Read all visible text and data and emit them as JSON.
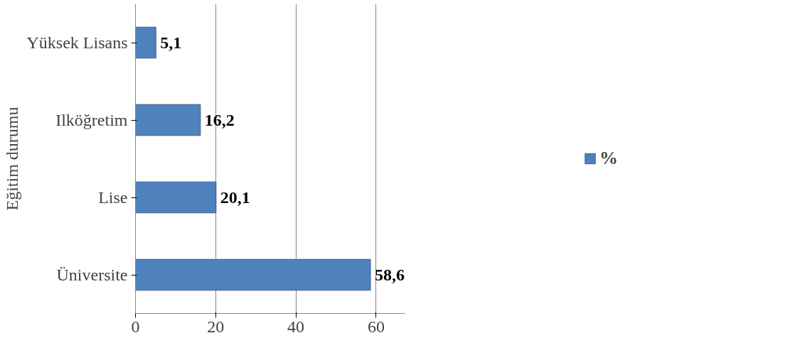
{
  "chart_data": {
    "type": "bar",
    "orientation": "horizontal",
    "ylabel": "Eğitim durumu",
    "categories": [
      "Yüksek Lisans",
      "Ilköğretim",
      "Lise",
      "Üniversite"
    ],
    "series": [
      {
        "name": "%",
        "color": "#4f81bd",
        "values": [
          5.1,
          16.2,
          20.1,
          58.6
        ],
        "value_labels": [
          "5,1",
          "16,2",
          "20,1",
          "58,6"
        ]
      }
    ],
    "xlim": [
      0,
      60
    ],
    "xticks": [
      0,
      20,
      40,
      60
    ],
    "grid": "x",
    "legend": "right"
  }
}
